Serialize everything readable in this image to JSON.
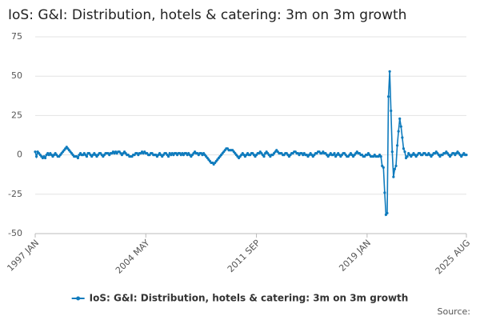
{
  "chart_data": {
    "type": "line",
    "title": "IoS: G&I: Distribution, hotels & catering: 3m on 3m growth",
    "source": "Source:",
    "categories": [
      "1997 JAN",
      null,
      null,
      null,
      null,
      null,
      null,
      null,
      null,
      null,
      null,
      null,
      null,
      null,
      null,
      null,
      null,
      null,
      null,
      null,
      null,
      null,
      null,
      null,
      null,
      null,
      null,
      null,
      null,
      null,
      null,
      null,
      null,
      null,
      null,
      null,
      null,
      null,
      null,
      null,
      null,
      null,
      null,
      null,
      null,
      null,
      null,
      null,
      null,
      null,
      null,
      null,
      null,
      null,
      null,
      null,
      null,
      null,
      null,
      null,
      null,
      null,
      null,
      null,
      null,
      null,
      null,
      null,
      null,
      null,
      null,
      null,
      null,
      null,
      null,
      null,
      null,
      null,
      null,
      null,
      null,
      null,
      null,
      null,
      null,
      null,
      null,
      null,
      "2004 MAY",
      null,
      null,
      null,
      null,
      null,
      null,
      null,
      null,
      null,
      null,
      null,
      null,
      null,
      null,
      null,
      null,
      null,
      null,
      null,
      null,
      null,
      null,
      null,
      null,
      null,
      null,
      null,
      null,
      null,
      null,
      null,
      null,
      null,
      null,
      null,
      null,
      null,
      null,
      null,
      null,
      null,
      null,
      null,
      null,
      null,
      null,
      null,
      null,
      null,
      null,
      null,
      null,
      null,
      null,
      null,
      null,
      null,
      null,
      null,
      null,
      null,
      null,
      null,
      null,
      null,
      null,
      null,
      null,
      null,
      null,
      null,
      null,
      null,
      null,
      null,
      null,
      null,
      null,
      null,
      null,
      null,
      null,
      null,
      null,
      null,
      null,
      null,
      "2011 SEP",
      null,
      null,
      null,
      null,
      null,
      null,
      null,
      null,
      null,
      null,
      null,
      null,
      null,
      null,
      null,
      null,
      null,
      null,
      null,
      null,
      null,
      null,
      null,
      null,
      null,
      null,
      null,
      null,
      null,
      null,
      null,
      null,
      null,
      null,
      null,
      null,
      null,
      null,
      null,
      null,
      null,
      null,
      null,
      null,
      null,
      null,
      null,
      null,
      null,
      null,
      null,
      null,
      null,
      null,
      null,
      null,
      null,
      null,
      null,
      null,
      null,
      null,
      null,
      null,
      null,
      null,
      null,
      null,
      null,
      null,
      null,
      null,
      null,
      null,
      null,
      null,
      null,
      null,
      null,
      null,
      null,
      null,
      null,
      null,
      null,
      null,
      null,
      "2019 JAN",
      null,
      null,
      null,
      null,
      null,
      null,
      null,
      null,
      null,
      null,
      null,
      null,
      null,
      null,
      null,
      null,
      null,
      null,
      null,
      null,
      null,
      null,
      null,
      null,
      null,
      null,
      null,
      null,
      null,
      null,
      null,
      null,
      null,
      null,
      null,
      null,
      null,
      null,
      null,
      null,
      null,
      null,
      null,
      null,
      null,
      null,
      null,
      null,
      null,
      null,
      null,
      null,
      null,
      null,
      null,
      null,
      null,
      null,
      null,
      null,
      null,
      null,
      null,
      null,
      null,
      null,
      null,
      null,
      null,
      null,
      null,
      null,
      null,
      null,
      null,
      null,
      null,
      null,
      "2025 AUG"
    ],
    "series": [
      {
        "name": "IoS: G&I: Distribution, hotels & catering: 3m on 3m growth",
        "color": "#0f7bbd",
        "values": [
          2,
          -1,
          2,
          1,
          0,
          -1,
          -2,
          -1,
          -2,
          0,
          1,
          0,
          1,
          0,
          -1,
          0,
          1,
          0,
          -1,
          -1,
          0,
          1,
          2,
          3,
          4,
          5,
          4,
          3,
          2,
          1,
          0,
          -1,
          -1,
          -1,
          -2,
          0,
          1,
          0,
          0,
          1,
          0,
          -1,
          1,
          1,
          0,
          -1,
          0,
          1,
          0,
          -1,
          0,
          1,
          1,
          0,
          -1,
          0,
          1,
          1,
          1,
          0,
          1,
          1,
          2,
          1,
          2,
          1,
          2,
          2,
          1,
          0,
          1,
          2,
          1,
          0,
          0,
          -1,
          -1,
          -1,
          0,
          0,
          1,
          1,
          0,
          1,
          1,
          2,
          1,
          2,
          1,
          1,
          0,
          0,
          1,
          1,
          0,
          0,
          0,
          -1,
          0,
          1,
          0,
          -1,
          0,
          1,
          1,
          0,
          -1,
          1,
          0,
          1,
          0,
          1,
          1,
          0,
          1,
          1,
          0,
          1,
          0,
          1,
          1,
          0,
          1,
          0,
          -1,
          0,
          1,
          2,
          1,
          1,
          0,
          1,
          1,
          0,
          1,
          0,
          -1,
          -2,
          -3,
          -4,
          -5,
          -5,
          -6,
          -5,
          -4,
          -3,
          -2,
          -1,
          0,
          1,
          2,
          3,
          4,
          4,
          3,
          3,
          3,
          3,
          2,
          1,
          0,
          -1,
          -2,
          -1,
          0,
          1,
          0,
          -1,
          0,
          1,
          0,
          0,
          1,
          1,
          0,
          -1,
          0,
          1,
          1,
          2,
          1,
          0,
          -1,
          1,
          2,
          1,
          0,
          -1,
          0,
          0,
          1,
          2,
          3,
          2,
          1,
          1,
          1,
          0,
          0,
          1,
          1,
          0,
          -1,
          0,
          1,
          1,
          2,
          2,
          1,
          1,
          0,
          1,
          1,
          0,
          1,
          0,
          0,
          -1,
          0,
          1,
          0,
          -1,
          0,
          1,
          1,
          2,
          2,
          1,
          1,
          2,
          1,
          1,
          0,
          -1,
          0,
          1,
          0,
          0,
          1,
          -1,
          0,
          1,
          0,
          -1,
          0,
          1,
          1,
          0,
          -1,
          -1,
          0,
          1,
          0,
          -1,
          0,
          1,
          2,
          1,
          1,
          0,
          0,
          -1,
          -1,
          0,
          0,
          1,
          0,
          -1,
          -1,
          -1,
          0,
          -1,
          -1,
          -1,
          0,
          -1,
          -7,
          -8,
          -24,
          -38,
          -37,
          37,
          53,
          28,
          2,
          -14,
          -9,
          -7,
          6,
          15,
          23,
          18,
          11,
          4,
          2,
          -2,
          -1,
          1,
          0,
          -1,
          0,
          1,
          0,
          -1,
          0,
          1,
          1,
          0,
          0,
          1,
          1,
          0,
          0,
          1,
          0,
          -1,
          0,
          1,
          1,
          2,
          1,
          0,
          -1,
          0,
          0,
          1,
          1,
          2,
          1,
          0,
          -1,
          0,
          1,
          1,
          0,
          1,
          2,
          1,
          0,
          -1,
          0,
          1,
          0,
          0
        ]
      }
    ],
    "ylim": [
      -50,
      75
    ],
    "yticks": [
      -50,
      -25,
      0,
      25,
      50,
      75
    ],
    "grid": true
  }
}
